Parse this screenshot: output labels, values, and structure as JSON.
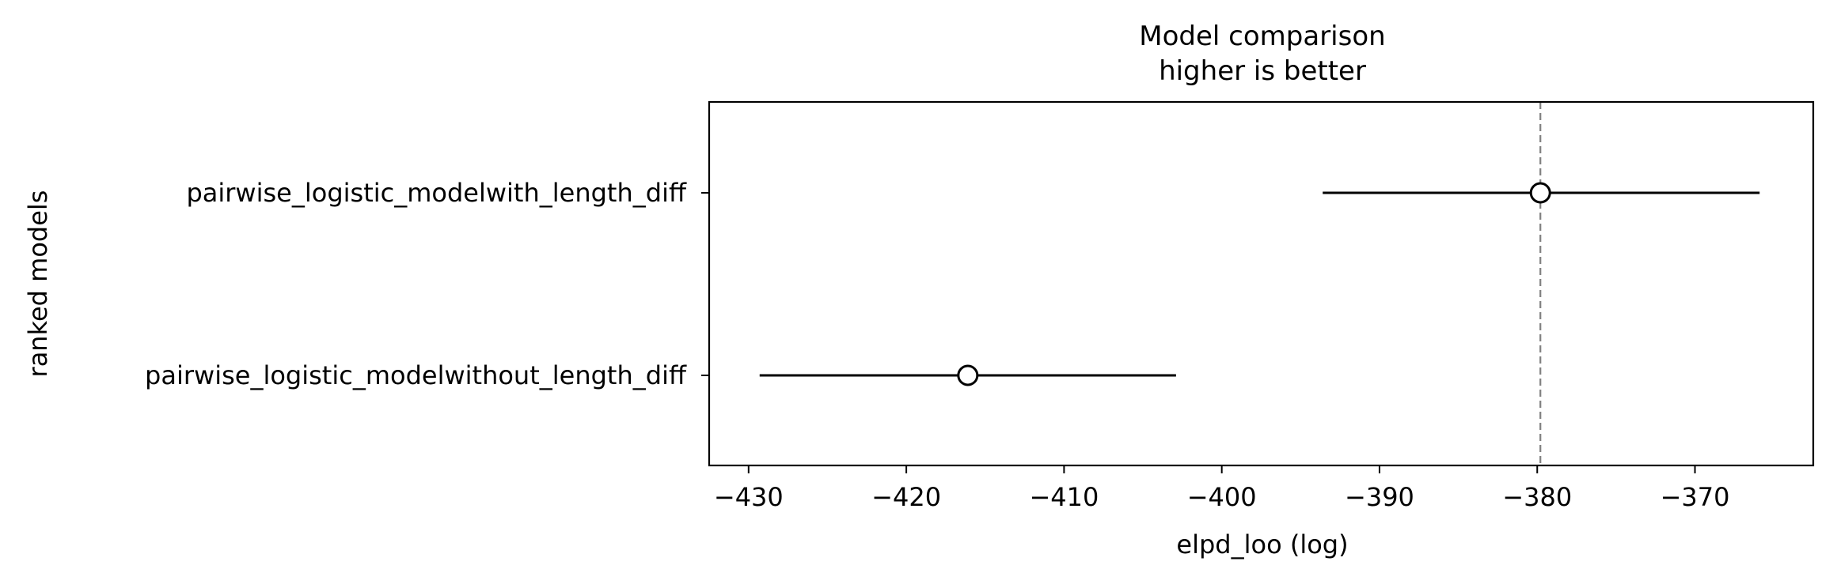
{
  "chart_data": {
    "type": "scatter",
    "title": "Model comparison",
    "subtitle": "higher is better",
    "xlabel": "elpd_loo (log)",
    "ylabel": "ranked models",
    "xlim": [
      -432.5,
      -362.5
    ],
    "xticks": [
      -430,
      -420,
      -410,
      -400,
      -390,
      -380,
      -370
    ],
    "xtick_labels": [
      "−430",
      "−420",
      "−410",
      "−400",
      "−390",
      "−380",
      "−370"
    ],
    "models": [
      {
        "name": "pairwise_logistic_modelwith_length_diff",
        "elpd": -379.8,
        "low": -393.6,
        "high": -365.9
      },
      {
        "name": "pairwise_logistic_modelwithout_length_diff",
        "elpd": -416.1,
        "low": -429.3,
        "high": -402.9
      }
    ],
    "reference_line": -379.8,
    "grid": false,
    "colors": {
      "marker_edge": "#000000",
      "marker_fill": "#ffffff",
      "errorbar": "#000000",
      "reference_line": "#808080"
    }
  }
}
